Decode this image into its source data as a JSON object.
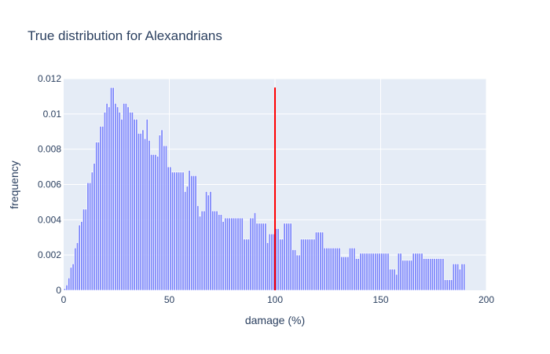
{
  "chart_data": {
    "type": "bar",
    "title": "True distribution for Alexandrians",
    "xlabel": "damage (%)",
    "ylabel": "frequency",
    "xlim": [
      0,
      200
    ],
    "ylim": [
      0,
      0.012
    ],
    "x_ticks": [
      0,
      50,
      100,
      150,
      200
    ],
    "x_tick_labels": [
      "0",
      "50",
      "100",
      "150",
      "200"
    ],
    "y_ticks": [
      0,
      0.002,
      0.004,
      0.006,
      0.008,
      0.01,
      0.012
    ],
    "y_tick_labels": [
      "0",
      "0.002",
      "0.004",
      "0.006",
      "0.008",
      "0.01",
      "0.012"
    ],
    "grid": true,
    "legend": "none",
    "bar_color": "#636efa",
    "plot_bg": "#e5ecf6",
    "bin_width": 1,
    "bin_start": 0,
    "values": [
      0.0001,
      0.0003,
      0.0007,
      0.0013,
      0.0015,
      0.0024,
      0.0027,
      0.0037,
      0.0039,
      0.0046,
      0.0046,
      0.0061,
      0.0061,
      0.0067,
      0.0072,
      0.0084,
      0.0084,
      0.0093,
      0.0093,
      0.0101,
      0.0106,
      0.0104,
      0.0115,
      0.0115,
      0.0106,
      0.0104,
      0.0101,
      0.0097,
      0.0106,
      0.0106,
      0.0104,
      0.0101,
      0.0101,
      0.0097,
      0.0097,
      0.0089,
      0.0089,
      0.0091,
      0.0086,
      0.0097,
      0.0085,
      0.0077,
      0.0077,
      0.0077,
      0.0076,
      0.0088,
      0.0091,
      0.0082,
      0.0082,
      0.007,
      0.007,
      0.0067,
      0.0067,
      0.0067,
      0.0067,
      0.0067,
      0.0067,
      0.0056,
      0.0059,
      0.0068,
      0.0065,
      0.0065,
      0.0065,
      0.0048,
      0.0042,
      0.0045,
      0.0045,
      0.0056,
      0.0054,
      0.0056,
      0.0045,
      0.0045,
      0.0045,
      0.0043,
      0.0043,
      0.0039,
      0.0041,
      0.0041,
      0.0041,
      0.0041,
      0.0041,
      0.0041,
      0.0041,
      0.0041,
      0.0041,
      0.0029,
      0.0029,
      0.0029,
      0.0041,
      0.0041,
      0.0044,
      0.0038,
      0.0038,
      0.0038,
      0.0038,
      0.0038,
      0.0027,
      0.0032,
      0.0032,
      0.0032,
      0.0035,
      0.0035,
      0.0029,
      0.0029,
      0.0038,
      0.0038,
      0.0038,
      0.0038,
      0.0023,
      0.0023,
      0.002,
      0.002,
      0.0029,
      0.0029,
      0.0029,
      0.0029,
      0.0029,
      0.0029,
      0.0029,
      0.0033,
      0.0033,
      0.0033,
      0.0033,
      0.0024,
      0.0024,
      0.0024,
      0.0024,
      0.0024,
      0.0024,
      0.0024,
      0.0024,
      0.0019,
      0.0019,
      0.0019,
      0.0019,
      0.0024,
      0.0024,
      0.0024,
      0.0018,
      0.0018,
      0.0021,
      0.0021,
      0.0021,
      0.0021,
      0.0021,
      0.0021,
      0.0021,
      0.0021,
      0.0021,
      0.0021,
      0.0021,
      0.0021,
      0.0021,
      0.0021,
      0.0012,
      0.0012,
      0.0012,
      0.0009,
      0.0021,
      0.0021,
      0.0017,
      0.0017,
      0.0017,
      0.0017,
      0.0017,
      0.0021,
      0.0021,
      0.0021,
      0.0021,
      0.0021,
      0.0018,
      0.0018,
      0.0018,
      0.0018,
      0.0018,
      0.0018,
      0.0018,
      0.0018,
      0.0018,
      0.0018,
      0.0006,
      0.0006,
      0.0006,
      0.0006,
      0.0015,
      0.0015,
      0.0015,
      0.0012,
      0.0015,
      0.0015
    ],
    "vertical_line": {
      "x": 100,
      "y_top": 0.0115,
      "color": "#ff0000"
    }
  }
}
